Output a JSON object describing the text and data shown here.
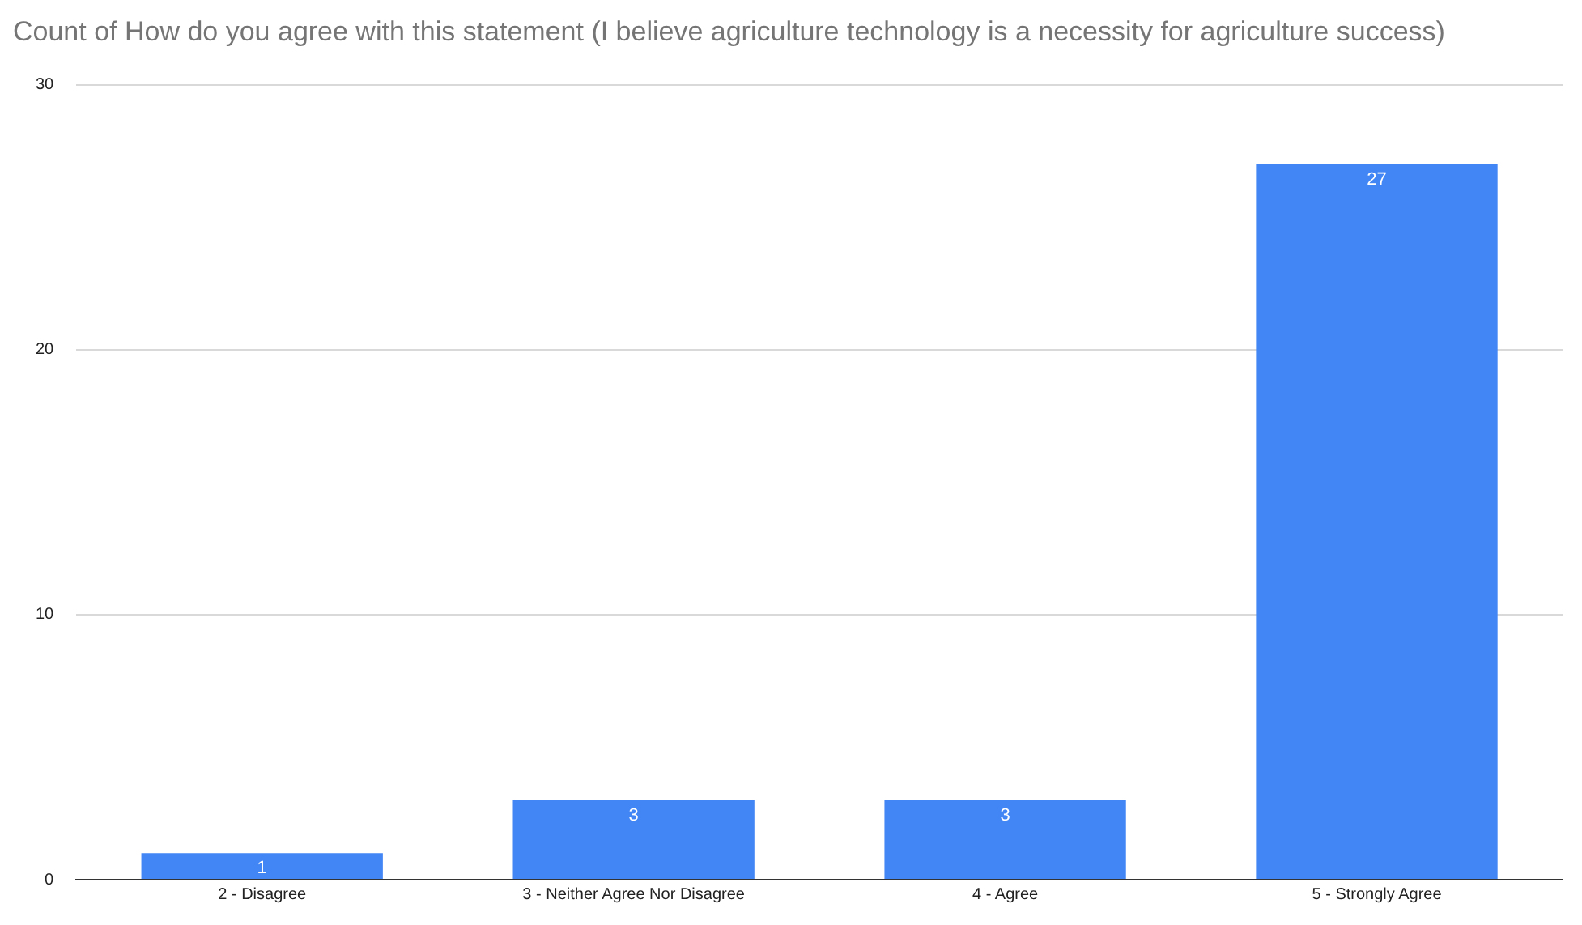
{
  "chart_data": {
    "type": "bar",
    "title": "Count of How do you agree with this statement (I believe agriculture technology is a necessity for agriculture success)",
    "categories": [
      "2 - Disagree",
      "3 - Neither Agree Nor Disagree",
      "4 - Agree",
      "5 - Strongly Agree"
    ],
    "values": [
      1,
      3,
      3,
      27
    ],
    "color": "#4285f4",
    "ylim": [
      0,
      30
    ],
    "yticks": [
      0,
      10,
      20,
      30
    ],
    "grid": "y",
    "data_labels": true,
    "legend": false
  }
}
